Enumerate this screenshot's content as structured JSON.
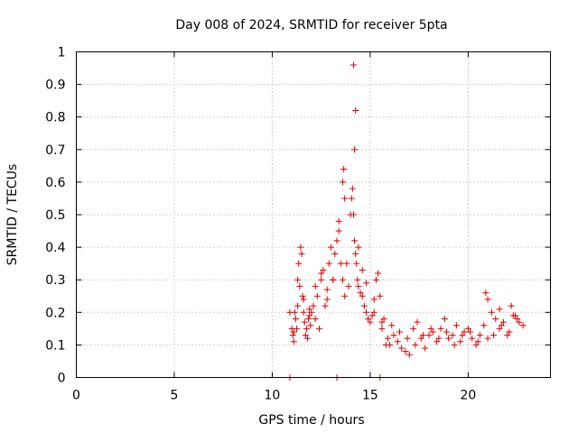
{
  "chart_data": {
    "type": "scatter",
    "title": "Day 008 of 2024, SRMTID for receiver 5pta",
    "xlabel": "GPS time / hours",
    "ylabel": "SRMTID / TECUs",
    "xlim": [
      0,
      24.2
    ],
    "ylim": [
      0,
      1
    ],
    "xticks": [
      0,
      5,
      10,
      15,
      20
    ],
    "xtick_labels": [
      "0",
      "5",
      "10",
      "15",
      "20"
    ],
    "yticks": [
      0,
      0.1,
      0.2,
      0.3,
      0.4,
      0.5,
      0.6,
      0.7,
      0.8,
      0.9,
      1
    ],
    "ytick_labels": [
      "0",
      "0.1",
      "0.2",
      "0.3",
      "0.4",
      "0.5",
      "0.6",
      "0.7",
      "0.8",
      "0.9",
      "1"
    ],
    "grid": true,
    "marker": "plus",
    "series": [
      {
        "name": "SRMTID",
        "color": "#dd0000",
        "x": [
          10.9,
          11.0,
          11.05,
          11.1,
          11.15,
          11.2,
          11.25,
          11.3,
          11.35,
          11.4,
          11.45,
          11.5,
          11.55,
          11.6,
          11.65,
          11.7,
          11.75,
          11.8,
          11.85,
          11.9,
          11.95,
          12.0,
          12.1,
          12.2,
          12.3,
          12.4,
          12.5,
          12.6,
          12.7,
          12.8,
          12.9,
          13.0,
          13.1,
          13.2,
          13.3,
          13.4,
          13.5,
          13.6,
          13.7,
          13.8,
          13.9,
          14.0,
          14.05,
          14.1,
          14.15,
          14.2,
          14.25,
          14.3,
          14.35,
          14.4,
          14.5,
          14.6,
          14.7,
          14.8,
          14.9,
          15.0,
          15.1,
          15.2,
          15.3,
          15.4,
          15.5,
          15.6,
          15.7,
          15.8,
          15.9,
          16.0,
          16.2,
          16.4,
          16.6,
          16.8,
          17.0,
          17.2,
          17.4,
          17.6,
          17.8,
          18.0,
          18.2,
          18.4,
          18.6,
          18.8,
          19.0,
          19.2,
          19.4,
          19.6,
          19.8,
          20.0,
          20.2,
          20.4,
          20.6,
          20.8,
          21.0,
          21.2,
          21.4,
          21.6,
          21.8,
          22.0,
          22.2,
          22.4,
          22.6,
          22.8,
          11.1,
          11.3,
          11.6,
          11.9,
          12.2,
          12.5,
          12.8,
          13.1,
          13.4,
          13.7,
          13.6,
          13.65,
          14.2,
          14.25,
          14.15,
          14.4,
          14.6,
          14.8,
          15.2,
          15.6,
          16.1,
          16.5,
          16.9,
          17.3,
          17.7,
          18.1,
          18.5,
          18.9,
          19.3,
          19.7,
          20.1,
          20.5,
          20.9,
          21.3,
          21.7,
          22.1,
          22.5,
          21.0,
          21.6,
          22.3,
          10.9,
          13.3,
          15.5
        ],
        "y": [
          0.2,
          0.15,
          0.13,
          0.11,
          0.2,
          0.18,
          0.15,
          0.3,
          0.35,
          0.28,
          0.4,
          0.38,
          0.25,
          0.2,
          0.17,
          0.13,
          0.15,
          0.12,
          0.18,
          0.21,
          0.16,
          0.2,
          0.22,
          0.18,
          0.25,
          0.15,
          0.3,
          0.33,
          0.22,
          0.27,
          0.35,
          0.4,
          0.3,
          0.38,
          0.42,
          0.45,
          0.35,
          0.3,
          0.25,
          0.35,
          0.28,
          0.5,
          0.55,
          0.58,
          0.5,
          0.42,
          0.38,
          0.35,
          0.3,
          0.28,
          0.26,
          0.25,
          0.22,
          0.2,
          0.18,
          0.17,
          0.19,
          0.2,
          0.3,
          0.32,
          0.25,
          0.15,
          0.18,
          0.1,
          0.12,
          0.1,
          0.13,
          0.11,
          0.09,
          0.08,
          0.07,
          0.15,
          0.17,
          0.12,
          0.09,
          0.13,
          0.14,
          0.11,
          0.15,
          0.18,
          0.12,
          0.13,
          0.16,
          0.11,
          0.14,
          0.15,
          0.12,
          0.1,
          0.13,
          0.16,
          0.12,
          0.2,
          0.18,
          0.15,
          0.17,
          0.13,
          0.22,
          0.19,
          0.17,
          0.16,
          0.14,
          0.22,
          0.24,
          0.19,
          0.28,
          0.32,
          0.24,
          0.3,
          0.48,
          0.55,
          0.6,
          0.64,
          0.7,
          0.82,
          0.96,
          0.4,
          0.33,
          0.29,
          0.24,
          0.17,
          0.16,
          0.14,
          0.12,
          0.1,
          0.13,
          0.15,
          0.12,
          0.14,
          0.1,
          0.13,
          0.14,
          0.11,
          0.26,
          0.13,
          0.16,
          0.14,
          0.18,
          0.24,
          0.21,
          0.19,
          0.0,
          0.0,
          0.0
        ]
      }
    ]
  }
}
